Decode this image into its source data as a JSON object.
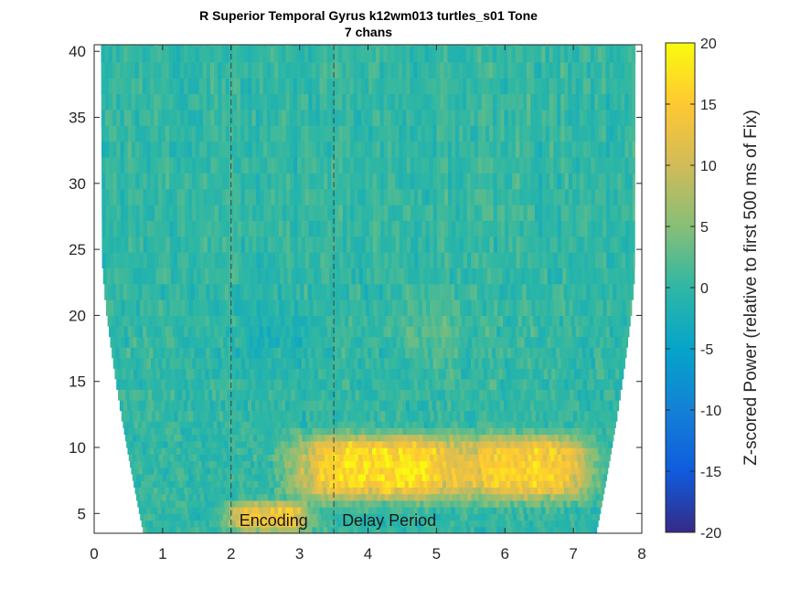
{
  "chart_data": {
    "type": "heatmap",
    "title": [
      "R Superior Temporal Gyrus k12wm013 turtles_s01 Tone",
      "7 chans"
    ],
    "xlabel": "",
    "ylabel": "",
    "xlim": [
      0,
      8
    ],
    "ylim": [
      3.5,
      40.5
    ],
    "x_ticks": [
      "0",
      "1",
      "2",
      "3",
      "4",
      "5",
      "6",
      "7",
      "8"
    ],
    "y_ticks": [
      "5",
      "10",
      "15",
      "20",
      "25",
      "30",
      "35",
      "40"
    ],
    "colorbar": {
      "label": "Z-scored Power (relative to first 500 ms of Fix)",
      "clim": [
        -20,
        20
      ],
      "ticks": [
        "20",
        "15",
        "10",
        "5",
        "0",
        "-5",
        "-10",
        "-15",
        "-20"
      ],
      "colormap": "parula"
    },
    "event_lines": [
      {
        "x": 2.0,
        "label": "Encoding"
      },
      {
        "x": 3.5,
        "label": "Delay Period"
      }
    ],
    "frequency_range_hz": [
      4,
      40
    ],
    "high_power_regions": [
      {
        "freq_hz": [
          6.5,
          10.5
        ],
        "time_s": [
          3.1,
          5.3
        ],
        "z_peak": 18
      },
      {
        "freq_hz": [
          6.5,
          10.5
        ],
        "time_s": [
          5.6,
          7.1
        ],
        "z_peak": 16
      },
      {
        "freq_hz": [
          4,
          5.5
        ],
        "time_s": [
          2.1,
          3.0
        ],
        "z_peak": 14
      }
    ],
    "background_z": 0
  }
}
